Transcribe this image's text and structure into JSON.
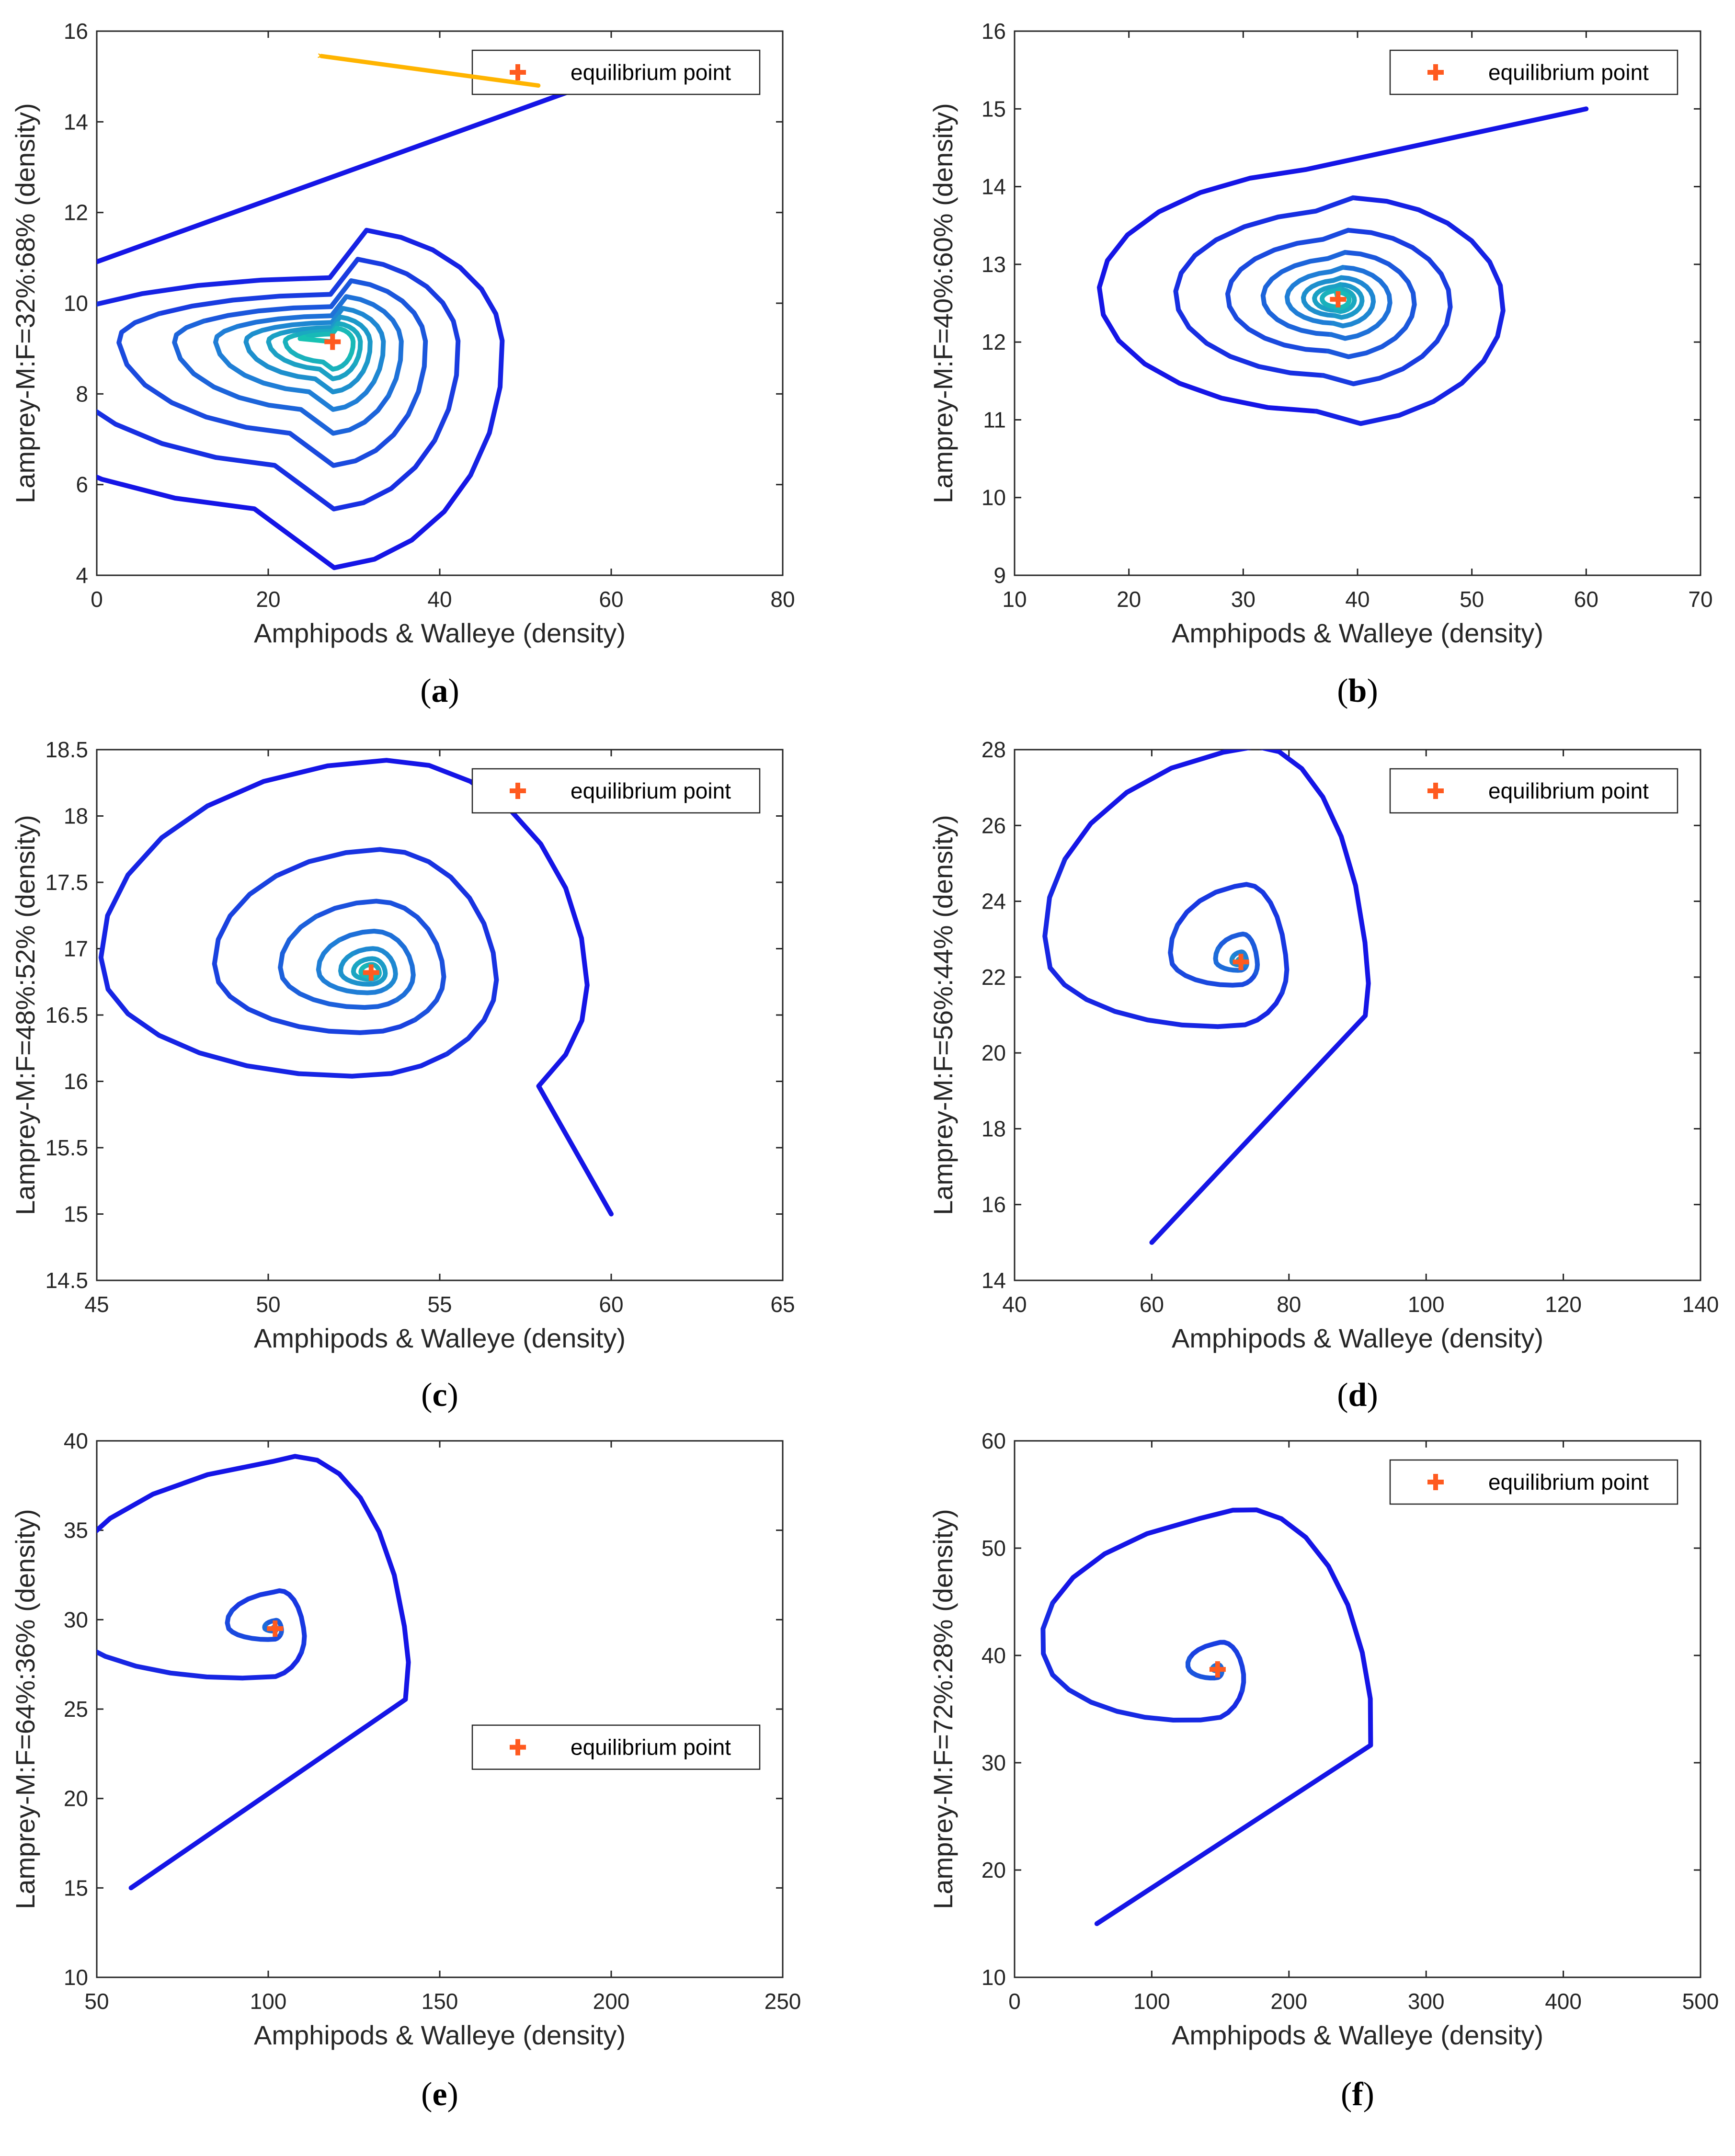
{
  "colors": {
    "outer_trajectory": "#1515e6",
    "mid_trajectory": "#1f7fd6",
    "inner_trajectory": "#17c3b2",
    "equilibrium_marker": "#ff5a1f",
    "arrow": "#ffb400"
  },
  "chart_data": [
    {
      "id": "a",
      "type": "line",
      "caption_open": "(",
      "caption_letter": "a",
      "caption_close": ")",
      "xlabel": "Amphipods & Walleye (density)",
      "ylabel": "Lamprey-M:F=32%:68% (density)",
      "xlim": [
        0,
        80
      ],
      "ylim": [
        4,
        16
      ],
      "xticks": [
        "0",
        "20",
        "40",
        "60",
        "80"
      ],
      "yticks": [
        "4",
        "6",
        "8",
        "10",
        "12",
        "14",
        "16"
      ],
      "legend": {
        "label": "equilibrium point",
        "position": "top-right"
      },
      "equilibrium": [
        27.5,
        9.15
      ],
      "arrow": true,
      "spiral": {
        "start": [
          60,
          15
        ],
        "eq": [
          27.5,
          9.15
        ],
        "xr0": 46.5,
        "xl0": 23.5,
        "yu0": 6.9,
        "yd0": 4.6,
        "turns": 8,
        "decay": 0.74,
        "phase": 0.43,
        "tilt": 0.06
      }
    },
    {
      "id": "b",
      "type": "line",
      "caption_open": "(",
      "caption_letter": "b",
      "caption_close": ")",
      "xlabel": "Amphipods & Walleye (density)",
      "ylabel": "Lamprey-M:F=40%:60% (density)",
      "xlim": [
        10,
        70
      ],
      "ylim": [
        9,
        16
      ],
      "xticks": [
        "10",
        "20",
        "30",
        "40",
        "50",
        "60",
        "70"
      ],
      "yticks": [
        "9",
        "10",
        "11",
        "12",
        "13",
        "14",
        "15",
        "16"
      ],
      "legend": {
        "label": "equilibrium point",
        "position": "top-right"
      },
      "equilibrium": [
        38.3,
        12.55
      ],
      "arrow": false,
      "spiral": {
        "start": [
          60,
          15
        ],
        "eq": [
          38.3,
          12.55
        ],
        "xr0": 22.8,
        "xl0": 19.1,
        "yu0": 3.1,
        "yd0": 3.05,
        "turns": 8,
        "decay": 0.68,
        "phase": 0.27,
        "tilt": 0.06
      }
    },
    {
      "id": "c",
      "type": "line",
      "caption_open": "(",
      "caption_letter": "c",
      "caption_close": ")",
      "xlabel": "Amphipods & Walleye (density)",
      "ylabel": "Lamprey-M:F=48%:52% (density)",
      "xlim": [
        45,
        65
      ],
      "ylim": [
        14.5,
        18.5
      ],
      "xticks": [
        "45",
        "50",
        "55",
        "60",
        "65"
      ],
      "yticks": [
        "14.5",
        "15",
        "15.5",
        "16",
        "16.5",
        "17",
        "17.5",
        "18",
        "18.5"
      ],
      "legend": {
        "label": "equilibrium point",
        "position": "top-right"
      },
      "equilibrium": [
        53.0,
        16.82
      ],
      "arrow": false,
      "spiral": {
        "start": [
          60,
          15
        ],
        "eq": [
          53.0,
          16.82
        ],
        "xr0": 11.0,
        "xl0": 6.7,
        "yu0": 1.25,
        "yd0": 1.95,
        "turns": 7,
        "decay": 0.58,
        "phase": -0.12,
        "tilt": 0.0
      }
    },
    {
      "id": "d",
      "type": "line",
      "caption_open": "(",
      "caption_letter": "d",
      "caption_close": ")",
      "xlabel": "Amphipods & Walleye (density)",
      "ylabel": "Lamprey-M:F=56%:44% (density)",
      "xlim": [
        40,
        140
      ],
      "ylim": [
        14,
        28
      ],
      "xticks": [
        "40",
        "60",
        "80",
        "100",
        "120",
        "140"
      ],
      "yticks": [
        "14",
        "16",
        "18",
        "20",
        "22",
        "24",
        "26",
        "28"
      ],
      "legend": {
        "label": "equilibrium point",
        "position": "top-right"
      },
      "equilibrium": [
        73.0,
        22.4
      ],
      "arrow": false,
      "spiral": {
        "start": [
          60,
          15
        ],
        "eq": [
          73.0,
          22.4
        ],
        "xr0": 50.0,
        "xl0": 19.5,
        "yu0": 3.85,
        "yd0": 7.7,
        "turns": 6,
        "decay": 0.36,
        "phase": -0.06,
        "tilt": 0.0
      }
    },
    {
      "id": "e",
      "type": "line",
      "caption_open": "(",
      "caption_letter": "e",
      "caption_close": ")",
      "xlabel": "Amphipods & Walleye (density)",
      "ylabel": "Lamprey-M:F=64%:36% (density)",
      "xlim": [
        50,
        250
      ],
      "ylim": [
        10,
        40
      ],
      "xticks": [
        "50",
        "100",
        "150",
        "200",
        "250"
      ],
      "yticks": [
        "10",
        "15",
        "20",
        "25",
        "30",
        "35",
        "40"
      ],
      "legend": {
        "label": "equilibrium point",
        "position": "center-right"
      },
      "equilibrium": [
        102.0,
        29.5
      ],
      "arrow": false,
      "spiral": {
        "start": [
          60,
          15
        ],
        "eq": [
          102.0,
          29.5
        ],
        "xr0": 146.0,
        "xl0": 42.0,
        "yu0": 9.3,
        "yd0": 15.2,
        "turns": 6,
        "decay": 0.22,
        "phase": -0.07,
        "tilt": 0.0
      }
    },
    {
      "id": "f",
      "type": "line",
      "caption_open": "(",
      "caption_letter": "f",
      "caption_close": ")",
      "xlabel": "Amphipods & Walleye (density)",
      "ylabel": "Lamprey-M:F=72%:28% (density)",
      "xlim": [
        0,
        500
      ],
      "ylim": [
        10,
        60
      ],
      "xticks": [
        "0",
        "100",
        "200",
        "300",
        "400",
        "500"
      ],
      "yticks": [
        "10",
        "20",
        "30",
        "40",
        "50",
        "60"
      ],
      "legend": {
        "label": "equilibrium point",
        "position": "top-right"
      },
      "equilibrium": [
        148.0,
        38.7
      ],
      "arrow": false,
      "spiral": {
        "start": [
          60,
          15
        ],
        "eq": [
          148.0,
          38.7
        ],
        "xr0": 332.0,
        "xl0": 120.0,
        "yu0": 19.2,
        "yd0": 24.9,
        "turns": 5,
        "decay": 0.17,
        "phase": -0.06,
        "tilt": 0.0
      }
    }
  ]
}
